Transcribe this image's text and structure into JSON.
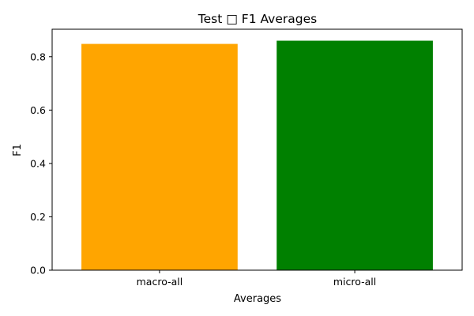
{
  "chart_data": {
    "type": "bar",
    "title": "Test □ F1 Averages",
    "xlabel": "Averages",
    "ylabel": "F1",
    "categories": [
      "macro-all",
      "micro-all"
    ],
    "values": [
      0.848,
      0.86
    ],
    "colors": [
      "#ffa500",
      "#008000"
    ],
    "ylim": [
      0,
      0.903
    ],
    "yticks": [
      0.0,
      0.2,
      0.4,
      0.6,
      0.8
    ],
    "ytick_labels": [
      "0.0",
      "0.2",
      "0.4",
      "0.6",
      "0.8"
    ],
    "grid": false,
    "legend": false
  }
}
